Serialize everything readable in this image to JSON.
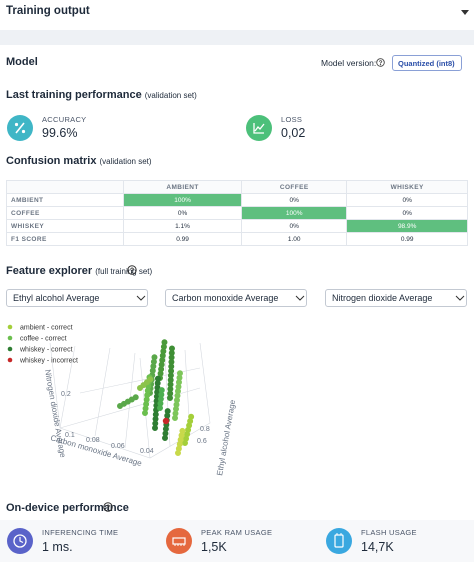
{
  "header": {
    "title": "Training output"
  },
  "model": {
    "title": "Model",
    "version_label": "Model version:",
    "version_select": "Quantized (int8)"
  },
  "last_training": {
    "title": "Last training performance",
    "subtitle": "(validation set)",
    "metrics": [
      {
        "label": "ACCURACY",
        "value": "99.6%"
      },
      {
        "label": "LOSS",
        "value": "0,02"
      }
    ]
  },
  "confusion_matrix": {
    "title": "Confusion matrix",
    "subtitle": "(validation set)",
    "columns": [
      "AMBIENT",
      "COFFEE",
      "WHISKEY"
    ],
    "rows": [
      {
        "label": "AMBIENT",
        "cells": [
          "100%",
          "0%",
          "0%"
        ]
      },
      {
        "label": "COFFEE",
        "cells": [
          "0%",
          "100%",
          "0%"
        ]
      },
      {
        "label": "WHISKEY",
        "cells": [
          "1.1%",
          "0%",
          "98.9%"
        ]
      },
      {
        "label": "F1 SCORE",
        "cells": [
          "0.99",
          "1.00",
          "0.99"
        ]
      }
    ]
  },
  "feature_explorer": {
    "title": "Feature explorer",
    "subtitle": "(full training set)",
    "selects": [
      "Ethyl alcohol Average",
      "Carbon monoxide Average",
      "Nitrogen dioxide Average"
    ],
    "legend": [
      "ambient - correct",
      "coffee - correct",
      "whiskey - correct",
      "whiskey - incorrect"
    ],
    "axes": {
      "z_label": "Nitrogen dioxide Average",
      "x_label": "Carbon monoxide Average",
      "y_label": "Ethyl alcohol Average",
      "z_ticks": [
        "0.2"
      ],
      "x_ticks": [
        "0.1",
        "0.08",
        "0.06",
        "0.04"
      ],
      "y_ticks": [
        "0.8",
        "0.6"
      ]
    }
  },
  "on_device": {
    "title": "On-device performance",
    "metrics": [
      {
        "label": "INFERENCING TIME",
        "value": "1 ms."
      },
      {
        "label": "PEAK RAM USAGE",
        "value": "1,5K"
      },
      {
        "label": "FLASH USAGE",
        "value": "14,7K"
      }
    ]
  }
}
